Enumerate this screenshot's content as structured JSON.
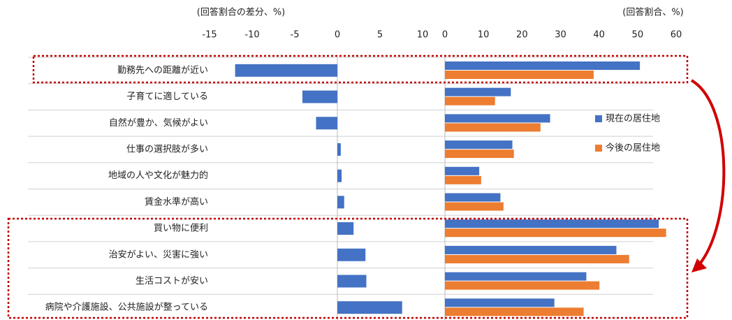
{
  "chart_data": [
    {
      "type": "bar",
      "orientation": "horizontal",
      "x_label": "(回答割合の差分、%)",
      "categories": [
        "勤務先への距離が近い",
        "子育てに適している",
        "自然が豊か、気候がよい",
        "仕事の選択肢が多い",
        "地域の人や文化が魅力的",
        "賃金水準が高い",
        "買い物に便利",
        "治安がよい、災害に強い",
        "生活コストが安い",
        "病院や介護施設、公共施設が整っている"
      ],
      "values": [
        -12,
        -4.1,
        -2.5,
        0.4,
        0.5,
        0.8,
        1.9,
        3.3,
        3.4,
        7.6
      ],
      "color": "#4472c4",
      "xlim": [
        -15,
        10
      ],
      "xticks": [
        -15,
        -10,
        -5,
        0,
        5,
        10
      ]
    },
    {
      "type": "bar",
      "orientation": "horizontal",
      "x_label": "(回答割合、%)",
      "series": [
        {
          "name": "現在の居住地",
          "color": "#4472c4",
          "values": [
            50.6,
            17.1,
            27.3,
            17.5,
            8.9,
            14.4,
            55.5,
            44.5,
            36.7,
            28.4
          ]
        },
        {
          "name": "今後の居住地",
          "color": "#ed7d31",
          "values": [
            38.6,
            13.0,
            24.8,
            17.9,
            9.4,
            15.2,
            57.4,
            47.8,
            40.1,
            36.0
          ]
        }
      ],
      "xlim": [
        0,
        60
      ],
      "xticks": [
        0,
        10,
        20,
        30,
        40,
        50,
        60
      ],
      "legend": "right"
    }
  ]
}
